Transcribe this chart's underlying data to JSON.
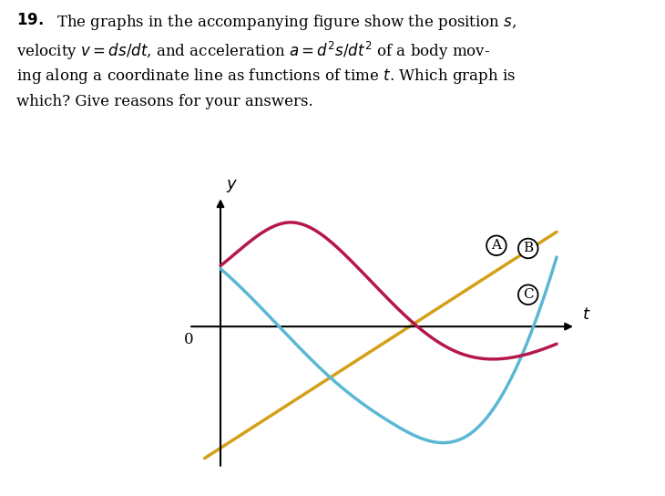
{
  "blue_color": "#5bb8d4",
  "red_color": "#b5174b",
  "yellow_color": "#d4a017",
  "label_A": "A",
  "label_B": "B",
  "label_C": "C",
  "label_t": "t",
  "label_y": "y",
  "label_0": "0",
  "background_color": "#ffffff",
  "text_lines": [
    "\\textbf{19.} The graphs in the accompanying figure show the position $s$,",
    "velocity $v = ds/dt$, and acceleration $a = d^2s/dt^2$ of a body mov-",
    "ing along a coordinate line as functions of time $t$. Which graph is",
    "which? Give reasons for your answers."
  ]
}
